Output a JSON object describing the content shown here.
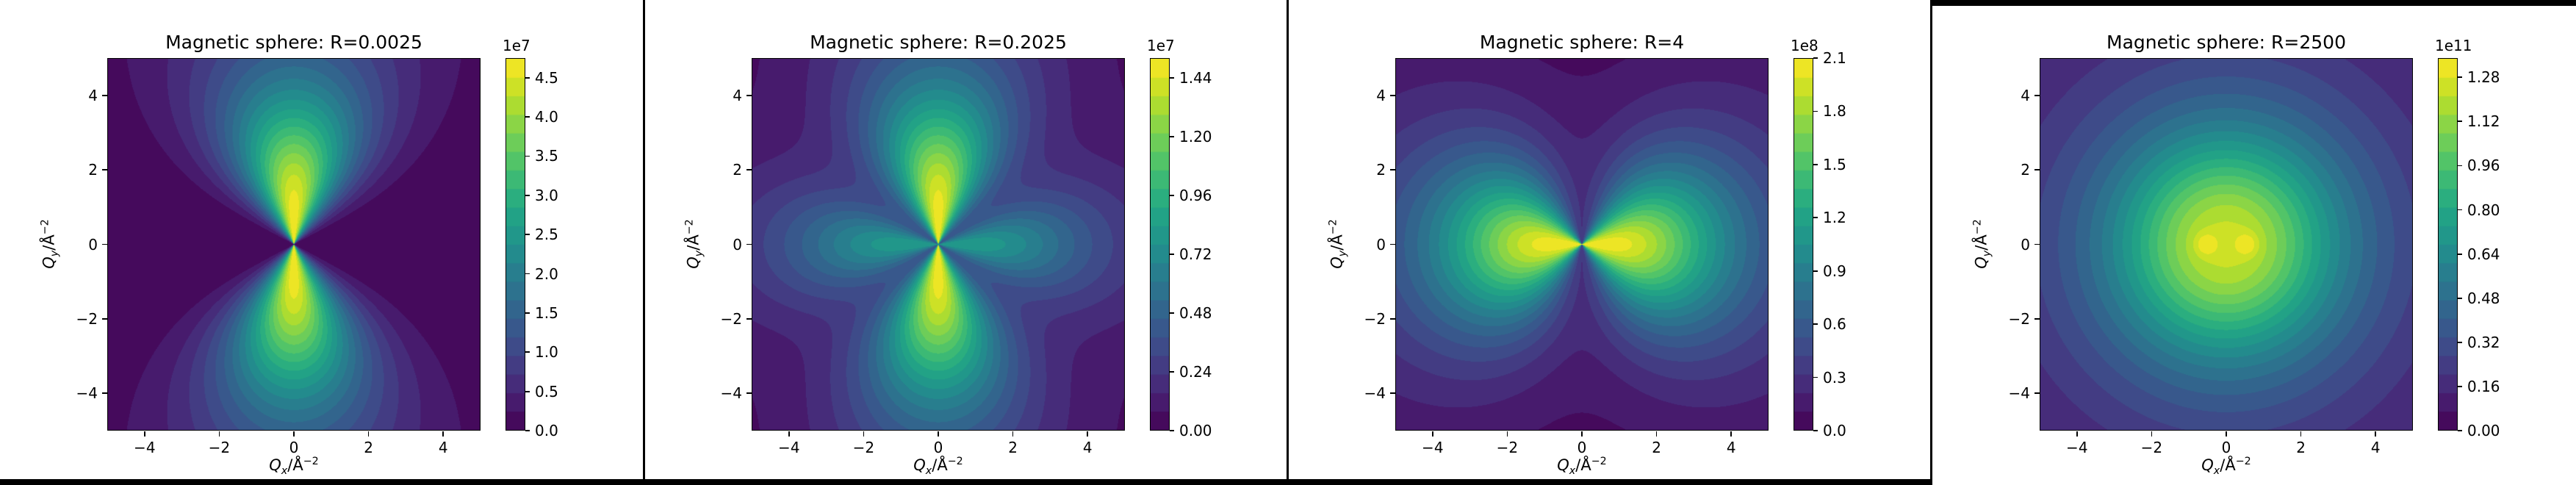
{
  "chart_data": {
    "type": "contour",
    "colormap": "viridis",
    "color_min_hex": "#440154",
    "color_max_hex": "#fde725",
    "n_levels": 20,
    "grid": false,
    "x_range": [
      -5,
      5
    ],
    "y_range": [
      -5,
      5
    ],
    "x_tick_values": [
      -4,
      -2,
      0,
      2,
      4
    ],
    "x_tick_labels": [
      "−4",
      "−2",
      "0",
      "2",
      "4"
    ],
    "y_tick_values": [
      -4,
      -2,
      0,
      2,
      4
    ],
    "y_tick_labels": [
      "−4",
      "−2",
      "0",
      "2",
      "4"
    ],
    "axis_labels": {
      "x": {
        "base": "Q",
        "sub": "x",
        "unit": "/Å",
        "sup": "−2"
      },
      "y": {
        "base": "Q",
        "sub": "y",
        "unit": "/Å",
        "sup": "−2"
      }
    },
    "panels": [
      {
        "title": "Magnetic sphere: R=0.0025",
        "R": "0.0025",
        "pattern": "two bright lobes along the Qy axis with a narrow yellow needle near the origin; dark wedges along the Qx axis (sin^2-type dipolar anisotropy)",
        "colorbar": {
          "offset_text": "1e7",
          "vmax": 4.75,
          "tick_values": [
            0,
            0.5,
            1.0,
            1.5,
            2.0,
            2.5,
            3.0,
            3.5,
            4.0,
            4.5
          ],
          "tick_labels": [
            "0.0",
            "0.5",
            "1.0",
            "1.5",
            "2.0",
            "2.5",
            "3.0",
            "3.5",
            "4.0",
            "4.5"
          ]
        },
        "model": {
          "kind": "lobes-y",
          "scale": 3.9,
          "power": 3
        }
      },
      {
        "title": "Magnetic sphere: R=0.2025",
        "R": "0.2025",
        "pattern": "four-lobe cross: strong yellow lobes along Qy, weaker green lobes along Qx, dark diagonals",
        "colorbar": {
          "offset_text": "1e7",
          "vmax": 1.52,
          "tick_values": [
            0,
            0.24,
            0.48,
            0.72,
            0.96,
            1.2,
            1.44
          ],
          "tick_labels": [
            "0.00",
            "0.24",
            "0.48",
            "0.72",
            "0.96",
            "1.20",
            "1.44"
          ]
        },
        "model": {
          "kind": "four-lobes",
          "scale": 3.9,
          "power": 3,
          "cross_coef": 0.55
        }
      },
      {
        "title": "Magnetic sphere: R=4",
        "R": "4",
        "pattern": "two broad bright lobes along the Qx axis pinched by a dark vertical wedge through the origin",
        "colorbar": {
          "offset_text": "1e8",
          "vmax": 2.1,
          "tick_values": [
            0,
            0.3,
            0.6,
            0.9,
            1.2,
            1.5,
            1.8,
            2.1
          ],
          "tick_labels": [
            "0.0",
            "0.3",
            "0.6",
            "0.9",
            "1.2",
            "1.5",
            "1.8",
            "2.1"
          ]
        },
        "model": {
          "kind": "lobes-x",
          "scale": 3.6,
          "power": 3,
          "perp_coef": 0.15
        }
      },
      {
        "title": "Magnetic sphere: R=2500",
        "R": "2500",
        "pattern": "nearly isotropic concentric contours with a large yellow-green core and two small yellow spots at Qx ≈ ±0.5",
        "colorbar": {
          "offset_text": "1e11",
          "vmax": 1.35,
          "tick_values": [
            0,
            0.16,
            0.32,
            0.48,
            0.64,
            0.8,
            0.96,
            1.12,
            1.28
          ],
          "tick_labels": [
            "0.00",
            "0.16",
            "0.32",
            "0.48",
            "0.64",
            "0.80",
            "0.96",
            "1.12",
            "1.28"
          ]
        },
        "model": {
          "kind": "isotropic",
          "scale": 3.0,
          "power": 2.4,
          "peak_coef": 0.92,
          "bump_amp": 0.1,
          "bump_x": 0.55,
          "bump_sigma2": 0.09
        }
      }
    ]
  },
  "frame": {
    "divider_color": "#000000",
    "bottom_bar": "window border under panels 1–3",
    "top_bar": "window border over panel 4"
  }
}
